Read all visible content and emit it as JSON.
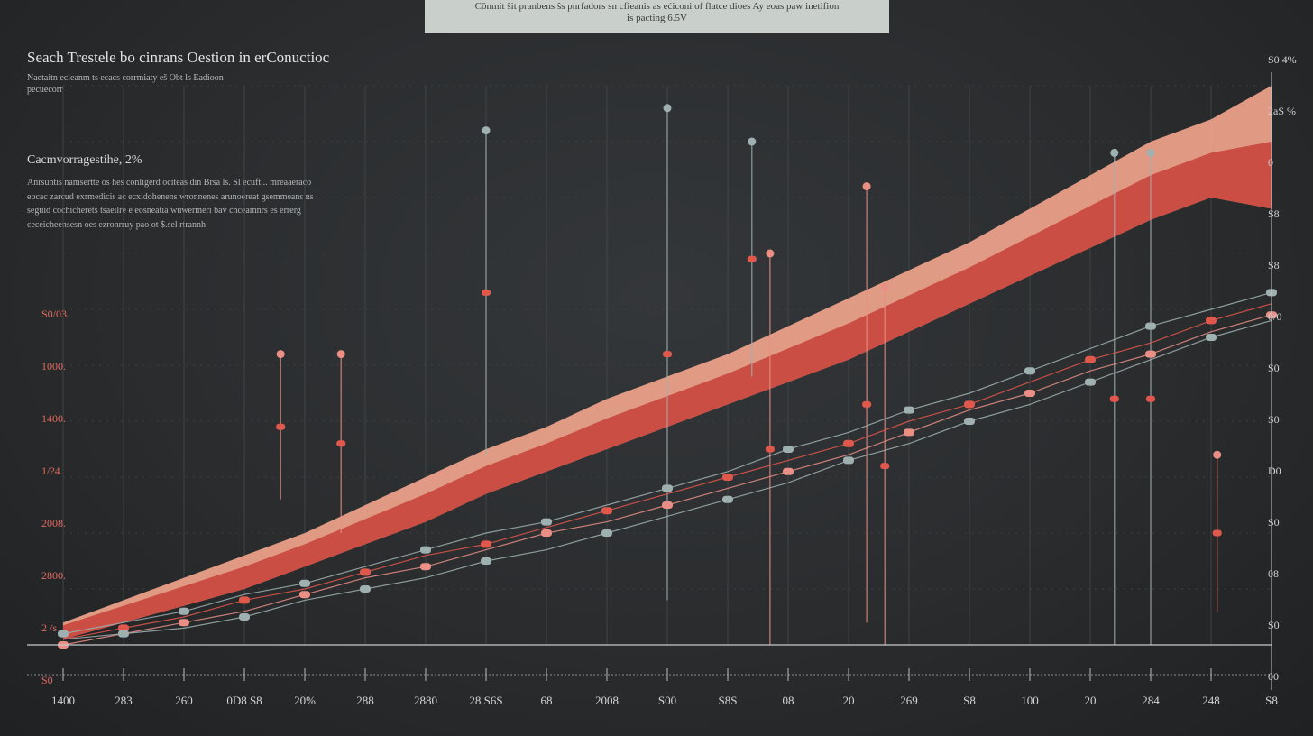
{
  "banner": {
    "line1": "Cŏnmit ŝit pranbens ŝs pnrfadors sn cfieanis as ećiconi of flatce dioes Ay eoas paw inetifion",
    "line2": "is pacting 6.5V"
  },
  "header": {
    "title": "Seach Trestele bo cinrans Oestion in erConuctioc",
    "subtitle_line1": "Naetaitn ecleanm ts ecacs corrmiaty eš Obt ls Eadioon",
    "subtitle_line2": "pecuecorr"
  },
  "annotation": {
    "heading": "Cacmvorragestihe, 2%",
    "body": "Anrsuntis namsertte os hes conligerd ociteas din Brsa ls. Sl ecuft... mreaaeraco eocac zarcud exrmedicis ac ecxidohenens wronnenes arunoereat gsemmeans ns seguid cochicherets tsaeilre e eosneatia wuwermeri bav cnceamnrs es errerg ceceicheensesn oes ezronrruy pao ot $.sel rtrannh"
  },
  "colors": {
    "background": "#2b2d2f",
    "band_dark": "#c9463d",
    "band_light": "#f0a48c",
    "series_red": "#e0574c",
    "series_pink": "#e98f86",
    "series_gray": "#9fb0b0",
    "axis": "#c7caca"
  },
  "chart_data": {
    "type": "line",
    "title": "",
    "xlabel": "",
    "ylabel": "",
    "x_tick_labels": [
      "1400",
      "283",
      "260",
      "0D8  S8",
      "20%",
      "288",
      "2880",
      "28  S6S",
      "68",
      "2008",
      "S00",
      "S8S",
      "08",
      "20",
      "269",
      "S8",
      "100",
      "20",
      "284",
      "248",
      "S8"
    ],
    "y_left_tick_labels": [
      "S0/03.",
      "1000.",
      "1400.",
      "1/?4.",
      "2008.",
      "2800.",
      "2 /s",
      "S0"
    ],
    "y_right_tick_labels": [
      "S0 4%",
      "2aS %",
      "0",
      "S8",
      "S8",
      "0/0",
      "S0",
      "S0",
      "D0",
      "S0",
      "08",
      "S0",
      "00"
    ],
    "x": [
      0,
      1,
      2,
      3,
      4,
      5,
      6,
      7,
      8,
      9,
      10,
      11,
      12,
      13,
      14,
      15,
      16,
      17,
      18,
      19,
      20
    ],
    "ylim": [
      0,
      100
    ],
    "series": [
      {
        "values": [
          2,
          4,
          6,
          9,
          11,
          14,
          17,
          20,
          22,
          25,
          28,
          31,
          35,
          38,
          42,
          45,
          49,
          53,
          57,
          60,
          63
        ]
      },
      {
        "values": [
          1,
          3,
          5,
          8,
          10,
          13,
          16,
          18,
          21,
          24,
          27,
          30,
          33,
          36,
          40,
          43,
          47,
          51,
          54,
          58,
          61
        ]
      },
      {
        "values": [
          0,
          2,
          4,
          6,
          9,
          12,
          14,
          17,
          20,
          22,
          25,
          28,
          31,
          34,
          38,
          42,
          45,
          49,
          52,
          56,
          59
        ]
      },
      {
        "values": [
          1,
          2,
          3,
          5,
          8,
          10,
          12,
          15,
          17,
          20,
          23,
          26,
          29,
          33,
          36,
          40,
          43,
          47,
          51,
          55,
          58
        ]
      }
    ],
    "band": {
      "upper": [
        4,
        8,
        12,
        16,
        20,
        25,
        30,
        35,
        39,
        44,
        48,
        52,
        57,
        62,
        67,
        72,
        78,
        84,
        90,
        94,
        100
      ],
      "lower": [
        1,
        4,
        7,
        10,
        14,
        18,
        22,
        27,
        31,
        35,
        39,
        43,
        47,
        51,
        56,
        61,
        66,
        71,
        76,
        80,
        78
      ]
    },
    "stems": [
      {
        "x": 3.6,
        "top": 52,
        "bottom": 26
      },
      {
        "x": 4.6,
        "top": 52,
        "bottom": 20
      },
      {
        "x": 7.0,
        "top": 92,
        "bottom": 34
      },
      {
        "x": 10.0,
        "top": 96,
        "bottom": 8
      },
      {
        "x": 11.4,
        "top": 90,
        "bottom": 48
      },
      {
        "x": 11.7,
        "top": 70,
        "bottom": 0
      },
      {
        "x": 13.3,
        "top": 82,
        "bottom": 4
      },
      {
        "x": 13.6,
        "top": 64,
        "bottom": 0
      },
      {
        "x": 17.4,
        "top": 88,
        "bottom": 0
      },
      {
        "x": 18.0,
        "top": 88,
        "bottom": 0
      },
      {
        "x": 19.1,
        "top": 34,
        "bottom": 6
      }
    ],
    "grid": true
  }
}
